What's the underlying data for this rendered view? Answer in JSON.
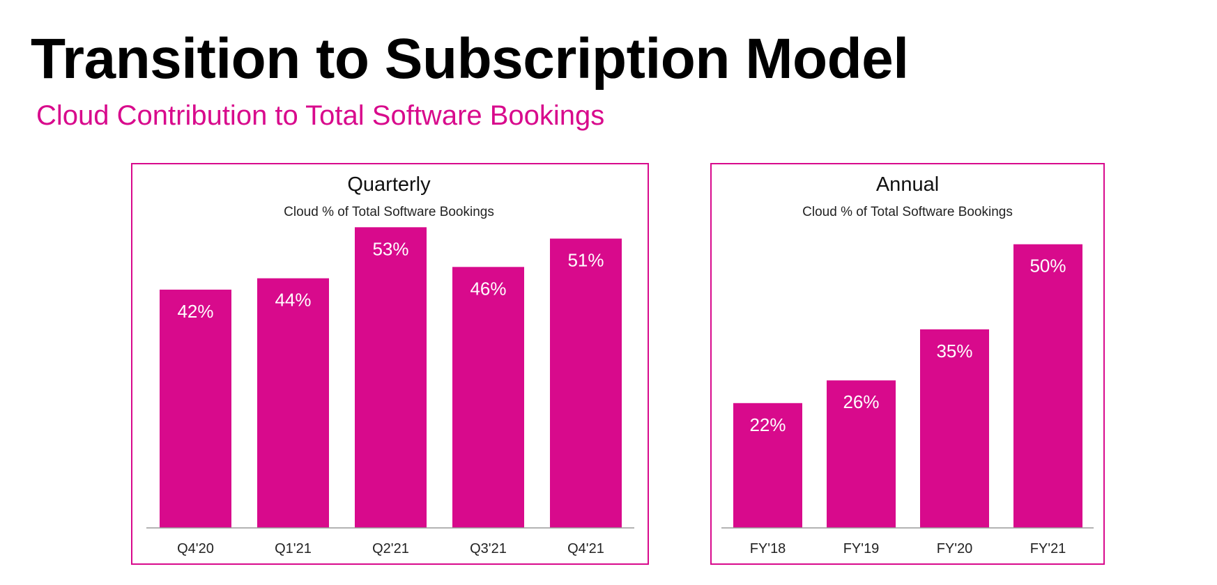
{
  "slide": {
    "title": "Transition to Subscription Model",
    "subtitle": "Cloud Contribution to Total Software Bookings"
  },
  "colors": {
    "accent": "#d80a8c",
    "bar": "#d80a8c",
    "title": "#000000"
  },
  "chart_data": [
    {
      "type": "bar",
      "title": "Quarterly",
      "subtitle": "Cloud % of Total Software Bookings",
      "categories": [
        "Q4'20",
        "Q1'21",
        "Q2'21",
        "Q3'21",
        "Q4'21"
      ],
      "values": [
        42,
        44,
        53,
        46,
        51
      ],
      "data_labels": [
        "42%",
        "44%",
        "53%",
        "46%",
        "51%"
      ],
      "unit": "%",
      "ylim": [
        0,
        55
      ],
      "grid": false,
      "legend": "none"
    },
    {
      "type": "bar",
      "title": "Annual",
      "subtitle": "Cloud % of Total Software Bookings",
      "categories": [
        "FY'18",
        "FY'19",
        "FY'20",
        "FY'21"
      ],
      "values": [
        22,
        26,
        35,
        50
      ],
      "data_labels": [
        "22%",
        "26%",
        "35%",
        "50%"
      ],
      "unit": "%",
      "ylim": [
        0,
        55
      ],
      "grid": false,
      "legend": "none"
    }
  ]
}
